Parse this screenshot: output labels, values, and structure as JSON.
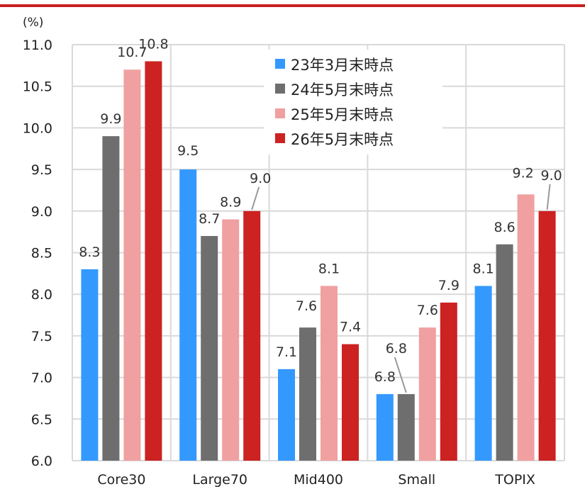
{
  "chart_data": {
    "type": "bar",
    "unit_label": "(%)",
    "categories": [
      "Core30",
      "Large70",
      "Mid400",
      "Small",
      "TOPIX"
    ],
    "series": [
      {
        "name": "23年3月末時点",
        "color": "#3399ff",
        "values": [
          8.3,
          9.5,
          7.1,
          6.8,
          8.1
        ]
      },
      {
        "name": "24年5月末時点",
        "color": "#6e6e6e",
        "values": [
          9.9,
          8.7,
          7.6,
          6.8,
          8.6
        ]
      },
      {
        "name": "25年5月末時点",
        "color": "#f0a0a0",
        "values": [
          10.7,
          8.9,
          8.1,
          7.6,
          9.2
        ]
      },
      {
        "name": "26年5月末時点",
        "color": "#cc2222",
        "values": [
          10.8,
          9.0,
          7.4,
          7.9,
          9.0
        ]
      }
    ],
    "ylim": [
      6.0,
      11.0
    ],
    "yticks": [
      "6.0",
      "6.5",
      "7.0",
      "7.5",
      "8.0",
      "8.5",
      "9.0",
      "9.5",
      "10.0",
      "10.5",
      "11.0"
    ],
    "grid": true,
    "legend_position": "top-center",
    "accent_color": "#c8201f"
  }
}
